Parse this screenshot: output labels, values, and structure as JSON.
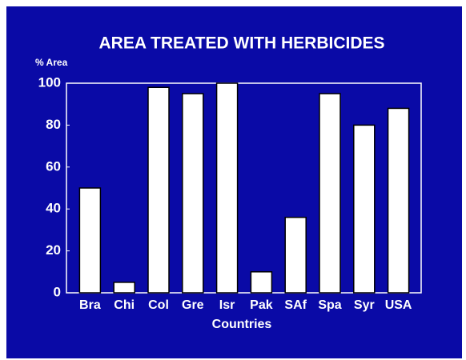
{
  "chart_data": {
    "type": "bar",
    "title": "AREA TREATED WITH HERBICIDES",
    "y_label": "% Area",
    "x_label": "Countries",
    "categories": [
      "Bra",
      "Chi",
      "Col",
      "Gre",
      "Isr",
      "Pak",
      "SAf",
      "Spa",
      "Syr",
      "USA"
    ],
    "values": [
      50,
      5,
      98,
      95,
      100,
      10,
      36,
      95,
      80,
      88
    ],
    "color": "#ffffff",
    "background": "#0a0aa6",
    "ylim": [
      0,
      100
    ],
    "yticks": [
      0,
      20,
      40,
      60,
      80,
      100
    ],
    "grid": false
  }
}
